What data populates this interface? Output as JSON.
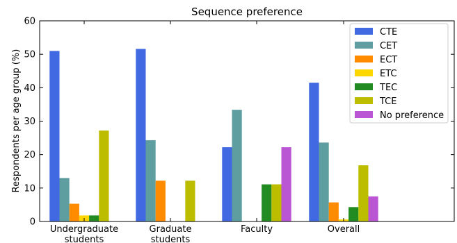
{
  "chart_data": {
    "type": "bar",
    "title": "Sequence preference",
    "xlabel": "",
    "ylabel": "Respondents per age group (%)",
    "ylim": [
      0,
      60
    ],
    "yticks": [
      0,
      10,
      20,
      30,
      40,
      50,
      60
    ],
    "grid": false,
    "legend_position": "top-right",
    "categories": [
      [
        "Undergraduate",
        "students"
      ],
      [
        "Graduate",
        "students"
      ],
      [
        "Faculty"
      ],
      [
        "Overall"
      ]
    ],
    "series": [
      {
        "name": "CTE",
        "color": "#4169E1",
        "values": [
          51.0,
          51.6,
          22.2,
          41.5
        ]
      },
      {
        "name": "CET",
        "color": "#5F9EA0",
        "values": [
          13.0,
          24.3,
          33.4,
          23.6
        ]
      },
      {
        "name": "ECT",
        "color": "#FF8C00",
        "values": [
          5.3,
          12.2,
          0.0,
          5.7
        ]
      },
      {
        "name": "ETC",
        "color": "#FFD700",
        "values": [
          1.8,
          0.0,
          0.0,
          0.6
        ]
      },
      {
        "name": "TEC",
        "color": "#228B22",
        "values": [
          1.8,
          0.0,
          11.1,
          4.3
        ]
      },
      {
        "name": "TCE",
        "color": "#BDBD00",
        "values": [
          27.2,
          12.2,
          11.1,
          16.8
        ]
      },
      {
        "name": "No preference",
        "color": "#BA55D3",
        "values": [
          0.0,
          0.0,
          22.2,
          7.5
        ]
      }
    ]
  }
}
